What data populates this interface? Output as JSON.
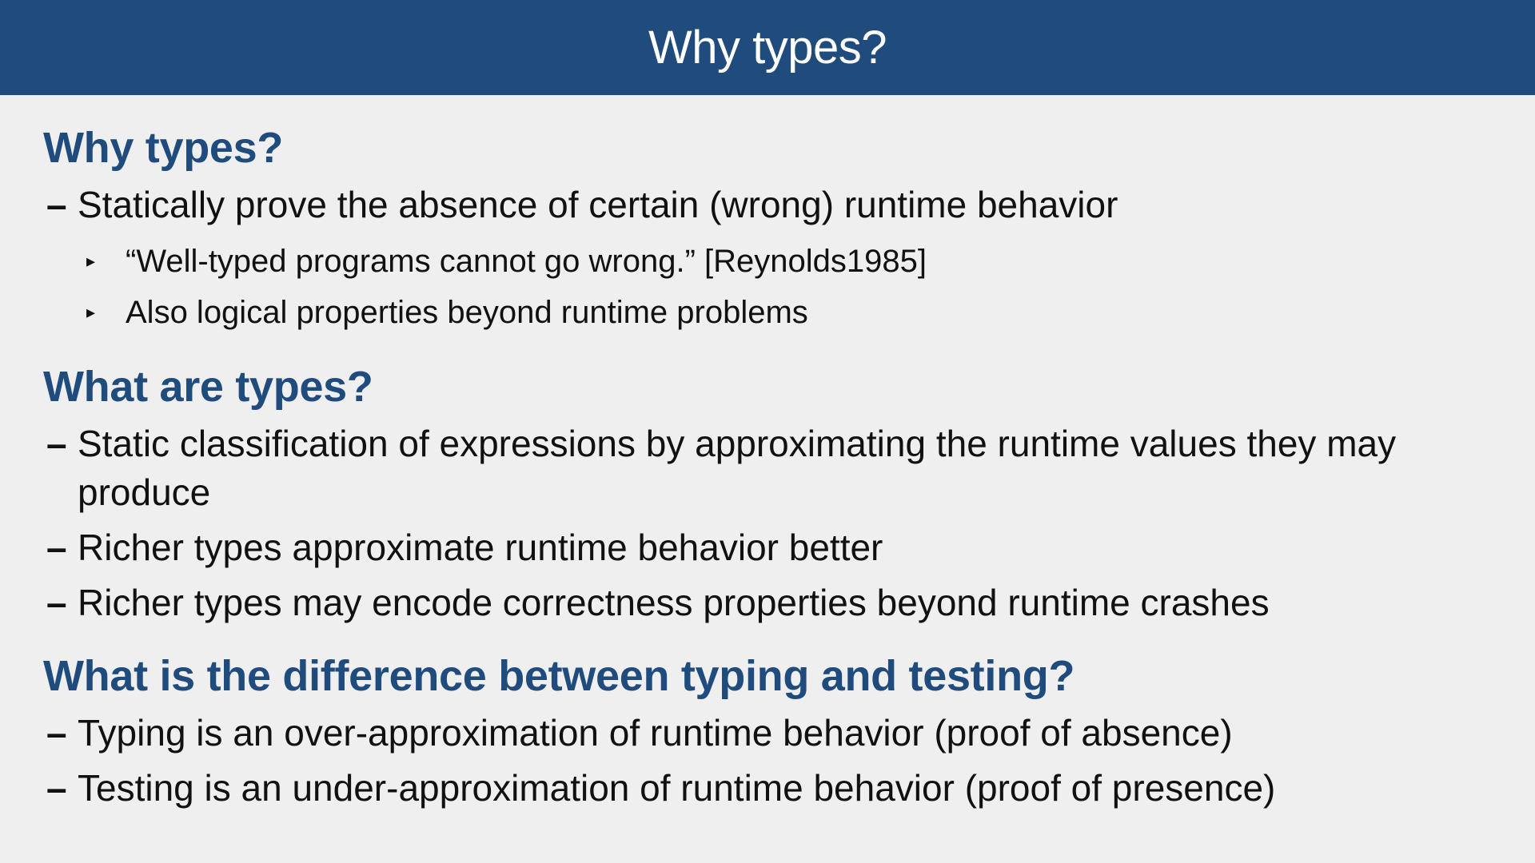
{
  "slide": {
    "title": "Why types?"
  },
  "sections": [
    {
      "heading": "Why types?",
      "items": [
        {
          "text": "Statically prove the absence of certain (wrong) runtime behavior",
          "subitems": [
            "“Well-typed programs cannot go wrong.” [Reynolds1985]",
            "Also logical properties beyond runtime problems"
          ]
        }
      ]
    },
    {
      "heading": "What are types?",
      "items": [
        {
          "text": "Static classification of expressions by approximating the runtime values they may produce"
        },
        {
          "text": "Richer types approximate runtime behavior better"
        },
        {
          "text": "Richer types may encode correctness properties beyond runtime crashes"
        }
      ]
    },
    {
      "heading": "What is the difference between typing and testing?",
      "items": [
        {
          "text": "Typing is an over-approximation of runtime behavior (proof of absence)"
        },
        {
          "text": "Testing is an under-approximation of runtime behavior (proof of presence)"
        }
      ]
    }
  ],
  "bullets": {
    "dash": "–",
    "triangle": "▸"
  }
}
